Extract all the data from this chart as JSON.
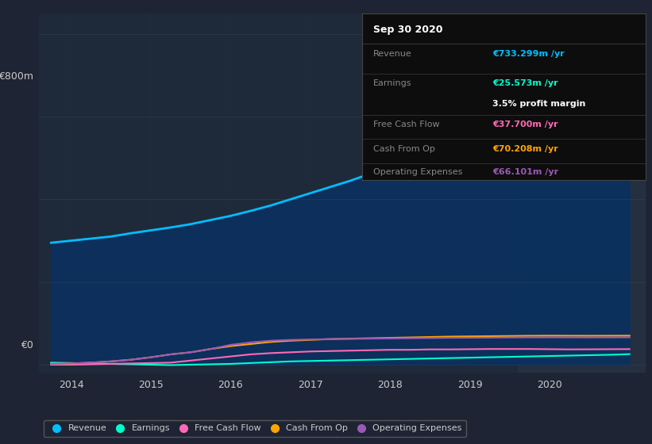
{
  "bg_color": "#1e2433",
  "plot_bg": "#1e2a3a",
  "highlight_bg": "#243040",
  "years": [
    2013.75,
    2014.0,
    2014.25,
    2014.5,
    2014.75,
    2015.0,
    2015.25,
    2015.5,
    2015.75,
    2016.0,
    2016.25,
    2016.5,
    2016.75,
    2017.0,
    2017.25,
    2017.5,
    2017.75,
    2018.0,
    2018.25,
    2018.5,
    2018.75,
    2019.0,
    2019.25,
    2019.5,
    2019.75,
    2020.0,
    2020.25,
    2020.5,
    2020.75,
    2021.0
  ],
  "revenue": [
    295,
    300,
    305,
    310,
    318,
    325,
    332,
    340,
    350,
    360,
    372,
    385,
    400,
    415,
    430,
    445,
    462,
    480,
    500,
    520,
    540,
    560,
    582,
    610,
    635,
    660,
    680,
    700,
    720,
    733
  ],
  "earnings": [
    5,
    4,
    3,
    2,
    1,
    0,
    -1,
    0,
    1,
    2,
    4,
    6,
    8,
    9,
    10,
    11,
    12,
    13,
    14,
    15,
    16,
    17,
    18,
    19,
    20,
    21,
    22,
    23,
    24,
    25.5
  ],
  "free_cash_flow": [
    0,
    0,
    1,
    2,
    3,
    4,
    5,
    10,
    15,
    20,
    25,
    28,
    30,
    32,
    33,
    34,
    35,
    36,
    36,
    37,
    37,
    37.5,
    38,
    38,
    38,
    37.5,
    37,
    37.2,
    37.5,
    37.7
  ],
  "cash_from_op": [
    2,
    3,
    5,
    8,
    12,
    18,
    25,
    30,
    38,
    45,
    50,
    55,
    58,
    60,
    62,
    63,
    64,
    65,
    66,
    67,
    68,
    68.5,
    69,
    69.5,
    70,
    70.2,
    70.1,
    70.0,
    70.1,
    70.2
  ],
  "operating_expenses": [
    2,
    3,
    5,
    8,
    12,
    18,
    25,
    30,
    38,
    48,
    54,
    58,
    60,
    61,
    62,
    62.5,
    63,
    63.5,
    64,
    64.5,
    65,
    65.2,
    65.5,
    65.8,
    66.0,
    66.1,
    66.0,
    65.9,
    66.0,
    66.1
  ],
  "revenue_color": "#00bfff",
  "earnings_color": "#00ffcc",
  "free_cash_flow_color": "#ff69b4",
  "cash_from_op_color": "#ffa500",
  "operating_expenses_color": "#9b59b6",
  "fill_color": "#0a3060",
  "y_tick_label_800": "€800m",
  "y_tick_label_0": "€0",
  "info_box": {
    "title": "Sep 30 2020",
    "revenue_label": "Revenue",
    "revenue_value": "€733.299m /yr",
    "earnings_label": "Earnings",
    "earnings_value": "€25.573m /yr",
    "profit_margin": "3.5% profit margin",
    "fcf_label": "Free Cash Flow",
    "fcf_value": "€37.700m /yr",
    "cfop_label": "Cash From Op",
    "cfop_value": "€70.208m /yr",
    "opex_label": "Operating Expenses",
    "opex_value": "€66.101m /yr",
    "bg": "#0d0d0d",
    "border": "#444444",
    "title_color": "#ffffff",
    "label_color": "#888888",
    "revenue_val_color": "#00bfff",
    "earnings_val_color": "#00ffcc",
    "profit_color": "#ffffff",
    "fcf_val_color": "#ff69b4",
    "cfop_val_color": "#ffa500",
    "opex_val_color": "#9b59b6"
  },
  "legend": [
    {
      "label": "Revenue",
      "color": "#00bfff"
    },
    {
      "label": "Earnings",
      "color": "#00ffcc"
    },
    {
      "label": "Free Cash Flow",
      "color": "#ff69b4"
    },
    {
      "label": "Cash From Op",
      "color": "#ffa500"
    },
    {
      "label": "Operating Expenses",
      "color": "#9b59b6"
    }
  ],
  "highlight_start": 2019.6,
  "highlight_end": 2021.2,
  "ylim": [
    -20,
    850
  ],
  "xlim": [
    2013.6,
    2021.2
  ]
}
